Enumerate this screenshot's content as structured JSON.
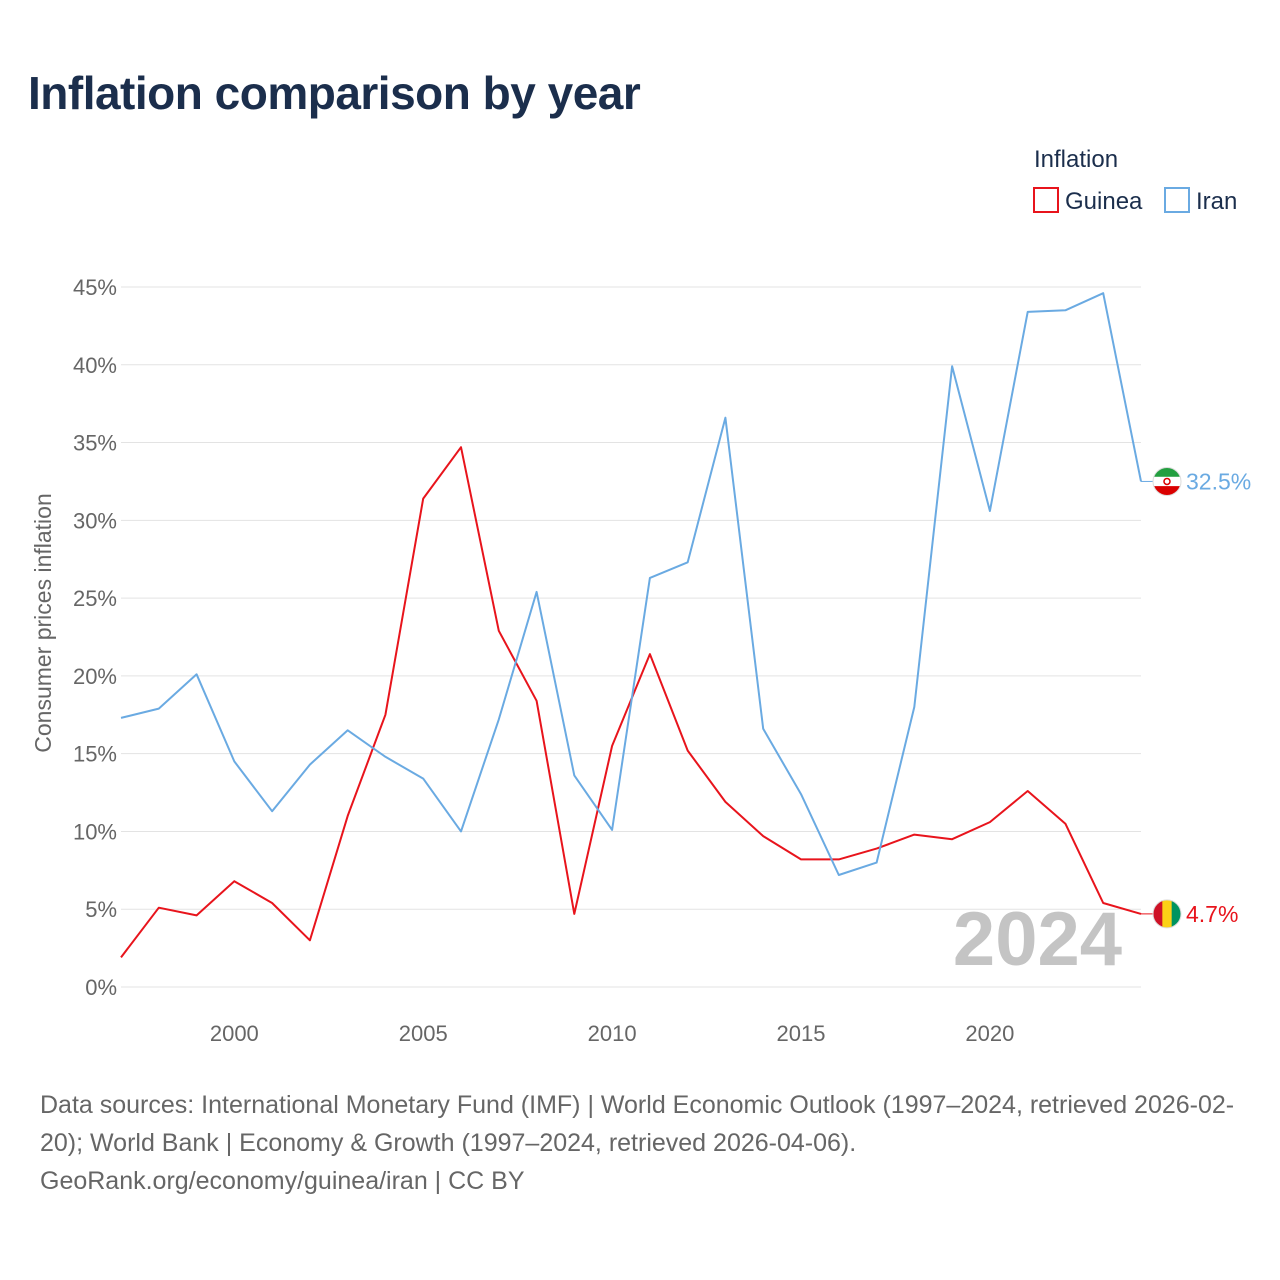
{
  "title": "Inflation comparison by year",
  "chart_data": {
    "type": "line",
    "title": "Inflation comparison by year",
    "xlabel": "",
    "ylabel": "Consumer prices inflation",
    "x": [
      1997,
      1998,
      1999,
      2000,
      2001,
      2002,
      2003,
      2004,
      2005,
      2006,
      2007,
      2008,
      2009,
      2010,
      2011,
      2012,
      2013,
      2014,
      2015,
      2016,
      2017,
      2018,
      2019,
      2020,
      2021,
      2022,
      2023,
      2024
    ],
    "xlim": [
      1997,
      2024
    ],
    "ylim": [
      0,
      45
    ],
    "x_ticks": [
      2000,
      2005,
      2010,
      2015,
      2020
    ],
    "x_tick_labels": [
      "2000",
      "2005",
      "2010",
      "2015",
      "2020"
    ],
    "y_ticks": [
      0,
      5,
      10,
      15,
      20,
      25,
      30,
      35,
      40,
      45
    ],
    "y_tick_labels": [
      "0%",
      "5%",
      "10%",
      "15%",
      "20%",
      "25%",
      "30%",
      "35%",
      "40%",
      "45%"
    ],
    "grid": true,
    "legend": {
      "title": "Inflation",
      "placement": "top-right"
    },
    "watermark": "2024",
    "series": [
      {
        "name": "Guinea",
        "color": "#e8141c",
        "values": [
          1.9,
          5.1,
          4.6,
          6.8,
          5.4,
          3.0,
          11.0,
          17.5,
          31.4,
          34.7,
          22.9,
          18.4,
          4.7,
          15.5,
          21.4,
          15.2,
          11.9,
          9.7,
          8.2,
          8.2,
          8.9,
          9.8,
          9.5,
          10.6,
          12.6,
          10.5,
          5.4,
          4.7
        ],
        "end_label": "4.7%",
        "flag_colors": [
          "#ce1126",
          "#fcd116",
          "#009460"
        ]
      },
      {
        "name": "Iran",
        "color": "#6aaae2",
        "values": [
          17.3,
          17.9,
          20.1,
          14.5,
          11.3,
          14.3,
          16.5,
          14.8,
          13.4,
          10.0,
          17.2,
          25.4,
          13.6,
          10.1,
          26.3,
          27.3,
          36.6,
          16.6,
          12.4,
          7.2,
          8.0,
          18.0,
          39.9,
          30.6,
          43.4,
          43.5,
          44.6,
          32.5
        ],
        "end_label": "32.5%",
        "flag_colors": [
          "#239f40",
          "#ffffff",
          "#da0000"
        ]
      }
    ]
  },
  "footer": {
    "sources": "Data sources: International Monetary Fund (IMF) | World Economic Outlook (1997–2024, retrieved 2026-02-20); World Bank | Economy & Growth (1997–2024, retrieved 2026-04-06).",
    "credit": "GeoRank.org/economy/guinea/iran | CC BY"
  }
}
